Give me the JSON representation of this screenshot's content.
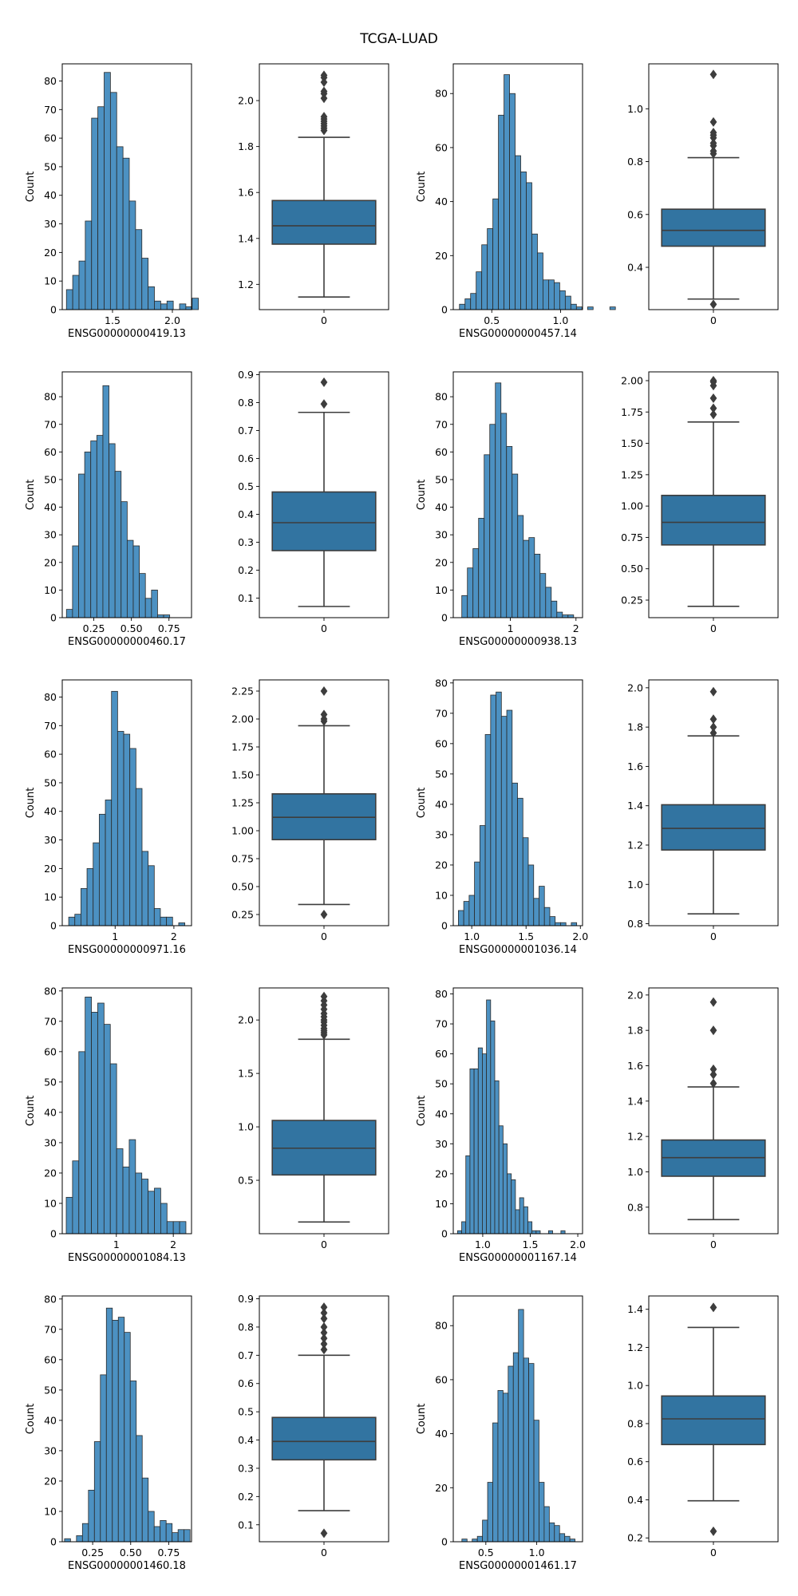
{
  "title": "TCGA-LUAD",
  "colors": {
    "hist_fill": "#4c91c2",
    "box_fill": "#3274a1",
    "line": "#3d3d3d",
    "edge": "#2a2a2a"
  },
  "chart_data": [
    {
      "type": "histogram",
      "xlabel": "ENSG00000000419.13",
      "ylabel": "Count",
      "bin_start": 1.115,
      "bin_width": 0.0525,
      "counts": [
        7,
        12,
        17,
        31,
        67,
        71,
        83,
        76,
        57,
        53,
        38,
        28,
        18,
        8,
        3,
        2,
        3,
        0,
        2,
        1,
        4
      ],
      "xlim": [
        1.08,
        2.16
      ],
      "xticks": [
        1.5,
        2.0
      ],
      "xtick_labels": [
        "1.5",
        "2.0"
      ],
      "ylim": [
        0,
        86
      ],
      "yticks": [
        0,
        10,
        20,
        30,
        40,
        50,
        60,
        70,
        80
      ]
    },
    {
      "type": "box",
      "xlabel": "",
      "category": "0",
      "stats": {
        "whisker_low": 1.145,
        "q1": 1.375,
        "median": 1.455,
        "q3": 1.565,
        "whisker_high": 1.84
      },
      "outliers": [
        1.87,
        1.88,
        1.89,
        1.9,
        1.91,
        1.92,
        1.93,
        2.01,
        2.03,
        2.04,
        2.08,
        2.1,
        2.11
      ],
      "ylim": [
        1.09,
        2.16
      ],
      "yticks": [
        1.2,
        1.4,
        1.6,
        1.8,
        2.0
      ],
      "ytick_labels": [
        "1.2",
        "1.4",
        "1.6",
        "1.8",
        "2.0"
      ]
    },
    {
      "type": "histogram",
      "xlabel": "ENSG00000000457.14",
      "ylabel": "Count",
      "bin_start": 0.265,
      "bin_width": 0.0405,
      "counts": [
        2,
        4,
        6,
        14,
        24,
        30,
        41,
        72,
        87,
        80,
        57,
        51,
        47,
        28,
        21,
        11,
        11,
        10,
        7,
        5,
        2,
        1,
        0,
        1,
        0,
        0,
        0,
        1
      ],
      "xlim": [
        0.22,
        1.16
      ],
      "xticks": [
        0.5,
        1.0
      ],
      "xtick_labels": [
        "0.5",
        "1.0"
      ],
      "ylim": [
        0,
        91
      ],
      "yticks": [
        0,
        20,
        40,
        60,
        80
      ]
    },
    {
      "type": "box",
      "xlabel": "",
      "category": "0",
      "stats": {
        "whisker_low": 0.28,
        "q1": 0.48,
        "median": 0.54,
        "q3": 0.62,
        "whisker_high": 0.815
      },
      "outliers": [
        0.26,
        0.83,
        0.84,
        0.86,
        0.87,
        0.89,
        0.9,
        0.91,
        0.95,
        1.13
      ],
      "ylim": [
        0.24,
        1.17
      ],
      "yticks": [
        0.4,
        0.6,
        0.8,
        1.0
      ],
      "ytick_labels": [
        "0.4",
        "0.6",
        "0.8",
        "1.0"
      ]
    },
    {
      "type": "histogram",
      "xlabel": "ENSG00000000460.17",
      "ylabel": "Count",
      "bin_start": 0.068,
      "bin_width": 0.0404,
      "counts": [
        3,
        26,
        52,
        60,
        64,
        66,
        84,
        63,
        53,
        42,
        28,
        26,
        16,
        7,
        10,
        1,
        1
      ],
      "xlim": [
        0.04,
        0.9
      ],
      "xticks": [
        0.25,
        0.5,
        0.75
      ],
      "xtick_labels": [
        "0.25",
        "0.50",
        "0.75"
      ],
      "ylim": [
        0,
        89
      ],
      "yticks": [
        0,
        10,
        20,
        30,
        40,
        50,
        60,
        70,
        80
      ]
    },
    {
      "type": "box",
      "xlabel": "",
      "category": "0",
      "stats": {
        "whisker_low": 0.07,
        "q1": 0.27,
        "median": 0.37,
        "q3": 0.48,
        "whisker_high": 0.765
      },
      "outliers": [
        0.795,
        0.873
      ],
      "ylim": [
        0.03,
        0.91
      ],
      "yticks": [
        0.1,
        0.2,
        0.3,
        0.4,
        0.5,
        0.6,
        0.7,
        0.8,
        0.9
      ],
      "ytick_labels": [
        "0.1",
        "0.2",
        "0.3",
        "0.4",
        "0.5",
        "0.6",
        "0.7",
        "0.8",
        "0.9"
      ]
    },
    {
      "type": "histogram",
      "xlabel": "ENSG00000000938.13",
      "ylabel": "Count",
      "bin_start": 0.26,
      "bin_width": 0.0852,
      "counts": [
        8,
        18,
        25,
        36,
        59,
        70,
        85,
        74,
        62,
        52,
        37,
        28,
        29,
        23,
        16,
        11,
        6,
        2,
        1,
        1
      ],
      "xlim": [
        0.13,
        2.1
      ],
      "xticks": [
        1.0,
        2.0
      ],
      "xtick_labels": [
        "1",
        "2"
      ],
      "ylim": [
        0,
        89
      ],
      "yticks": [
        0,
        10,
        20,
        30,
        40,
        50,
        60,
        70,
        80
      ]
    },
    {
      "type": "box",
      "xlabel": "",
      "category": "0",
      "stats": {
        "whisker_low": 0.2,
        "q1": 0.69,
        "median": 0.87,
        "q3": 1.085,
        "whisker_high": 1.67
      },
      "outliers": [
        1.73,
        1.78,
        1.86,
        1.96,
        1.99,
        2.0
      ],
      "ylim": [
        0.11,
        2.07
      ],
      "yticks": [
        0.25,
        0.5,
        0.75,
        1.0,
        1.25,
        1.5,
        1.75,
        2.0
      ],
      "ytick_labels": [
        "0.25",
        "0.50",
        "0.75",
        "1.00",
        "1.25",
        "1.50",
        "1.75",
        "2.00"
      ]
    },
    {
      "type": "histogram",
      "xlabel": "ENSG00000000971.16",
      "ylabel": "Count",
      "bin_start": 0.21,
      "bin_width": 0.104,
      "counts": [
        3,
        4,
        13,
        20,
        29,
        39,
        44,
        82,
        68,
        67,
        62,
        48,
        26,
        21,
        6,
        3,
        3,
        0,
        1
      ],
      "xlim": [
        0.1,
        2.3
      ],
      "xticks": [
        1.0,
        2.0
      ],
      "xtick_labels": [
        "1",
        "2"
      ],
      "ylim": [
        0,
        86
      ],
      "yticks": [
        0,
        10,
        20,
        30,
        40,
        50,
        60,
        70,
        80
      ]
    },
    {
      "type": "box",
      "xlabel": "",
      "category": "0",
      "stats": {
        "whisker_low": 0.34,
        "q1": 0.92,
        "median": 1.12,
        "q3": 1.33,
        "whisker_high": 1.94
      },
      "outliers": [
        0.25,
        1.98,
        2.0,
        2.04,
        2.25
      ],
      "ylim": [
        0.15,
        2.35
      ],
      "yticks": [
        0.25,
        0.5,
        0.75,
        1.0,
        1.25,
        1.5,
        1.75,
        2.0,
        2.25
      ],
      "ytick_labels": [
        "0.25",
        "0.50",
        "0.75",
        "1.00",
        "1.25",
        "1.50",
        "1.75",
        "2.00",
        "2.25"
      ]
    },
    {
      "type": "histogram",
      "xlabel": "ENSG00000001036.14",
      "ylabel": "Count",
      "bin_start": 0.877,
      "bin_width": 0.0495,
      "counts": [
        5,
        8,
        10,
        21,
        33,
        63,
        76,
        77,
        69,
        71,
        47,
        42,
        29,
        20,
        9,
        13,
        6,
        3,
        1,
        1,
        0,
        1
      ],
      "xlim": [
        0.83,
        2.02
      ],
      "xticks": [
        1.0,
        1.5,
        2.0
      ],
      "xtick_labels": [
        "1.0",
        "1.5",
        "2.0"
      ],
      "ylim": [
        0,
        81
      ],
      "yticks": [
        0,
        10,
        20,
        30,
        40,
        50,
        60,
        70,
        80
      ]
    },
    {
      "type": "box",
      "xlabel": "",
      "category": "0",
      "stats": {
        "whisker_low": 0.85,
        "q1": 1.175,
        "median": 1.285,
        "q3": 1.405,
        "whisker_high": 1.755
      },
      "outliers": [
        1.77,
        1.8,
        1.84,
        1.98
      ],
      "ylim": [
        0.79,
        2.04
      ],
      "yticks": [
        0.8,
        1.0,
        1.2,
        1.4,
        1.6,
        1.8,
        2.0
      ],
      "ytick_labels": [
        "0.8",
        "1.0",
        "1.2",
        "1.4",
        "1.6",
        "1.8",
        "2.0"
      ]
    },
    {
      "type": "histogram",
      "xlabel": "ENSG00000001084.13",
      "ylabel": "Count",
      "bin_start": 0.12,
      "bin_width": 0.1106,
      "counts": [
        12,
        24,
        60,
        78,
        73,
        76,
        69,
        56,
        28,
        22,
        31,
        20,
        18,
        14,
        15,
        10,
        4,
        4,
        4
      ],
      "xlim": [
        0.05,
        2.32
      ],
      "xticks": [
        1.0,
        2.0
      ],
      "xtick_labels": [
        "1",
        "2"
      ],
      "ylim": [
        0,
        81
      ],
      "yticks": [
        0,
        10,
        20,
        30,
        40,
        50,
        60,
        70,
        80
      ]
    },
    {
      "type": "box",
      "xlabel": "",
      "category": "0",
      "stats": {
        "whisker_low": 0.11,
        "q1": 0.55,
        "median": 0.8,
        "q3": 1.06,
        "whisker_high": 1.82
      },
      "outliers": [
        1.86,
        1.88,
        1.9,
        1.92,
        1.95,
        1.98,
        2.0,
        2.03,
        2.06,
        2.1,
        2.14,
        2.18,
        2.22
      ],
      "ylim": [
        0.0,
        2.3
      ],
      "yticks": [
        0.5,
        1.0,
        1.5,
        2.0
      ],
      "ytick_labels": [
        "0.5",
        "1.0",
        "1.5",
        "2.0"
      ]
    },
    {
      "type": "histogram",
      "xlabel": "ENSG00000001167.14",
      "ylabel": "Count",
      "bin_start": 0.735,
      "bin_width": 0.0435,
      "counts": [
        1,
        4,
        26,
        55,
        55,
        62,
        60,
        78,
        71,
        51,
        36,
        30,
        20,
        18,
        8,
        12,
        9,
        4,
        1,
        1,
        0,
        0,
        1,
        0,
        0,
        1
      ],
      "xlim": [
        0.69,
        2.05
      ],
      "xticks": [
        1.0,
        1.5,
        2.0
      ],
      "xtick_labels": [
        "1.0",
        "1.5",
        "2.0"
      ],
      "ylim": [
        0,
        82
      ],
      "yticks": [
        0,
        10,
        20,
        30,
        40,
        50,
        60,
        70,
        80
      ]
    },
    {
      "type": "box",
      "xlabel": "",
      "category": "0",
      "stats": {
        "whisker_low": 0.73,
        "q1": 0.975,
        "median": 1.08,
        "q3": 1.18,
        "whisker_high": 1.48
      },
      "outliers": [
        1.5,
        1.55,
        1.58,
        1.8,
        1.96
      ],
      "ylim": [
        0.65,
        2.04
      ],
      "yticks": [
        0.8,
        1.0,
        1.2,
        1.4,
        1.6,
        1.8,
        2.0
      ],
      "ytick_labels": [
        "0.8",
        "1.0",
        "1.2",
        "1.4",
        "1.6",
        "1.8",
        "2.0"
      ]
    },
    {
      "type": "histogram",
      "xlabel": "ENSG00000001460.18",
      "ylabel": "Count",
      "bin_start": 0.065,
      "bin_width": 0.0393,
      "counts": [
        1,
        0,
        2,
        6,
        17,
        33,
        55,
        77,
        73,
        74,
        69,
        53,
        35,
        21,
        10,
        5,
        7,
        6,
        3,
        4,
        4
      ],
      "xlim": [
        0.05,
        0.9
      ],
      "xticks": [
        0.25,
        0.5,
        0.75
      ],
      "xtick_labels": [
        "0.25",
        "0.50",
        "0.75"
      ],
      "ylim": [
        0,
        81
      ],
      "yticks": [
        0,
        10,
        20,
        30,
        40,
        50,
        60,
        70,
        80
      ]
    },
    {
      "type": "box",
      "xlabel": "",
      "category": "0",
      "stats": {
        "whisker_low": 0.15,
        "q1": 0.33,
        "median": 0.395,
        "q3": 0.48,
        "whisker_high": 0.7
      },
      "outliers": [
        0.07,
        0.72,
        0.74,
        0.76,
        0.78,
        0.8,
        0.83,
        0.85,
        0.87
      ],
      "ylim": [
        0.04,
        0.91
      ],
      "yticks": [
        0.1,
        0.2,
        0.3,
        0.4,
        0.5,
        0.6,
        0.7,
        0.8,
        0.9
      ],
      "ytick_labels": [
        "0.1",
        "0.2",
        "0.3",
        "0.4",
        "0.5",
        "0.6",
        "0.7",
        "0.8",
        "0.9"
      ]
    },
    {
      "type": "histogram",
      "xlabel": "ENSG00000001461.17",
      "ylabel": "Count",
      "bin_start": 0.265,
      "bin_width": 0.0505,
      "counts": [
        1,
        0,
        1,
        2,
        8,
        22,
        44,
        56,
        55,
        65,
        70,
        86,
        68,
        66,
        45,
        22,
        13,
        7,
        6,
        3,
        2,
        1
      ],
      "xlim": [
        0.18,
        1.45
      ],
      "xticks": [
        0.5,
        1.0
      ],
      "xtick_labels": [
        "0.5",
        "1.0"
      ],
      "ylim": [
        0,
        91
      ],
      "yticks": [
        0,
        20,
        40,
        60,
        80
      ]
    },
    {
      "type": "box",
      "xlabel": "",
      "category": "0",
      "stats": {
        "whisker_low": 0.395,
        "q1": 0.69,
        "median": 0.825,
        "q3": 0.945,
        "whisker_high": 1.305
      },
      "outliers": [
        0.235,
        1.41
      ],
      "ylim": [
        0.18,
        1.47
      ],
      "yticks": [
        0.2,
        0.4,
        0.6,
        0.8,
        1.0,
        1.2,
        1.4
      ],
      "ytick_labels": [
        "0.2",
        "0.4",
        "0.6",
        "0.8",
        "1.0",
        "1.2",
        "1.4"
      ]
    }
  ]
}
